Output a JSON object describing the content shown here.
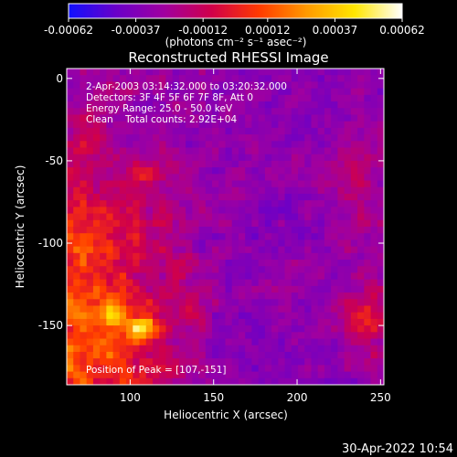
{
  "chart_data": {
    "type": "heatmap",
    "title": "Reconstructed RHESSI Image",
    "xlabel": "Heliocentric X (arcsec)",
    "ylabel": "Heliocentric Y (arcsec)",
    "xlim": [
      62,
      252
    ],
    "ylim": [
      -186,
      6
    ],
    "x_ticks": [
      {
        "value": 100,
        "label": "100"
      },
      {
        "value": 150,
        "label": "150"
      },
      {
        "value": 200,
        "label": "200"
      },
      {
        "value": 250,
        "label": "250"
      }
    ],
    "y_ticks": [
      {
        "value": 0,
        "label": "0"
      },
      {
        "value": -50,
        "label": "-50"
      },
      {
        "value": -100,
        "label": "-100"
      },
      {
        "value": -150,
        "label": "-150"
      }
    ],
    "colorbar": {
      "range": [
        -0.00062,
        0.00062
      ],
      "tick_values": [
        -0.00062,
        -0.00037,
        -0.00012,
        0.00012,
        0.00037,
        0.00062
      ],
      "tick_labels": [
        "-0.00062",
        "-0.00037",
        "-0.00012",
        "0.00012",
        "0.00037",
        "0.00062"
      ],
      "unit_label": "(photons cm⁻² s⁻¹ asec⁻²)",
      "colors": [
        "#1010ff",
        "#6a00c8",
        "#a000a0",
        "#d0004a",
        "#ff3a00",
        "#ff9a00",
        "#ffe600",
        "#ffffff"
      ]
    },
    "annotations": {
      "time_range": "2-Apr-2003 03:14:32.000 to 03:20:32.000",
      "detectors": "Detectors: 3F 4F 5F 6F 7F 8F, Att 0",
      "energy_range": "Energy Range: 25.0 - 50.0 keV",
      "clean_totals": "Clean    Total counts: 2.92E+04",
      "peak_position": "Position of Peak = [107,-151]"
    },
    "peak": [
      107,
      -151
    ],
    "peak_value": 0.00062,
    "grid": false
  },
  "footer": {
    "timestamp": "30-Apr-2022 10:54"
  }
}
